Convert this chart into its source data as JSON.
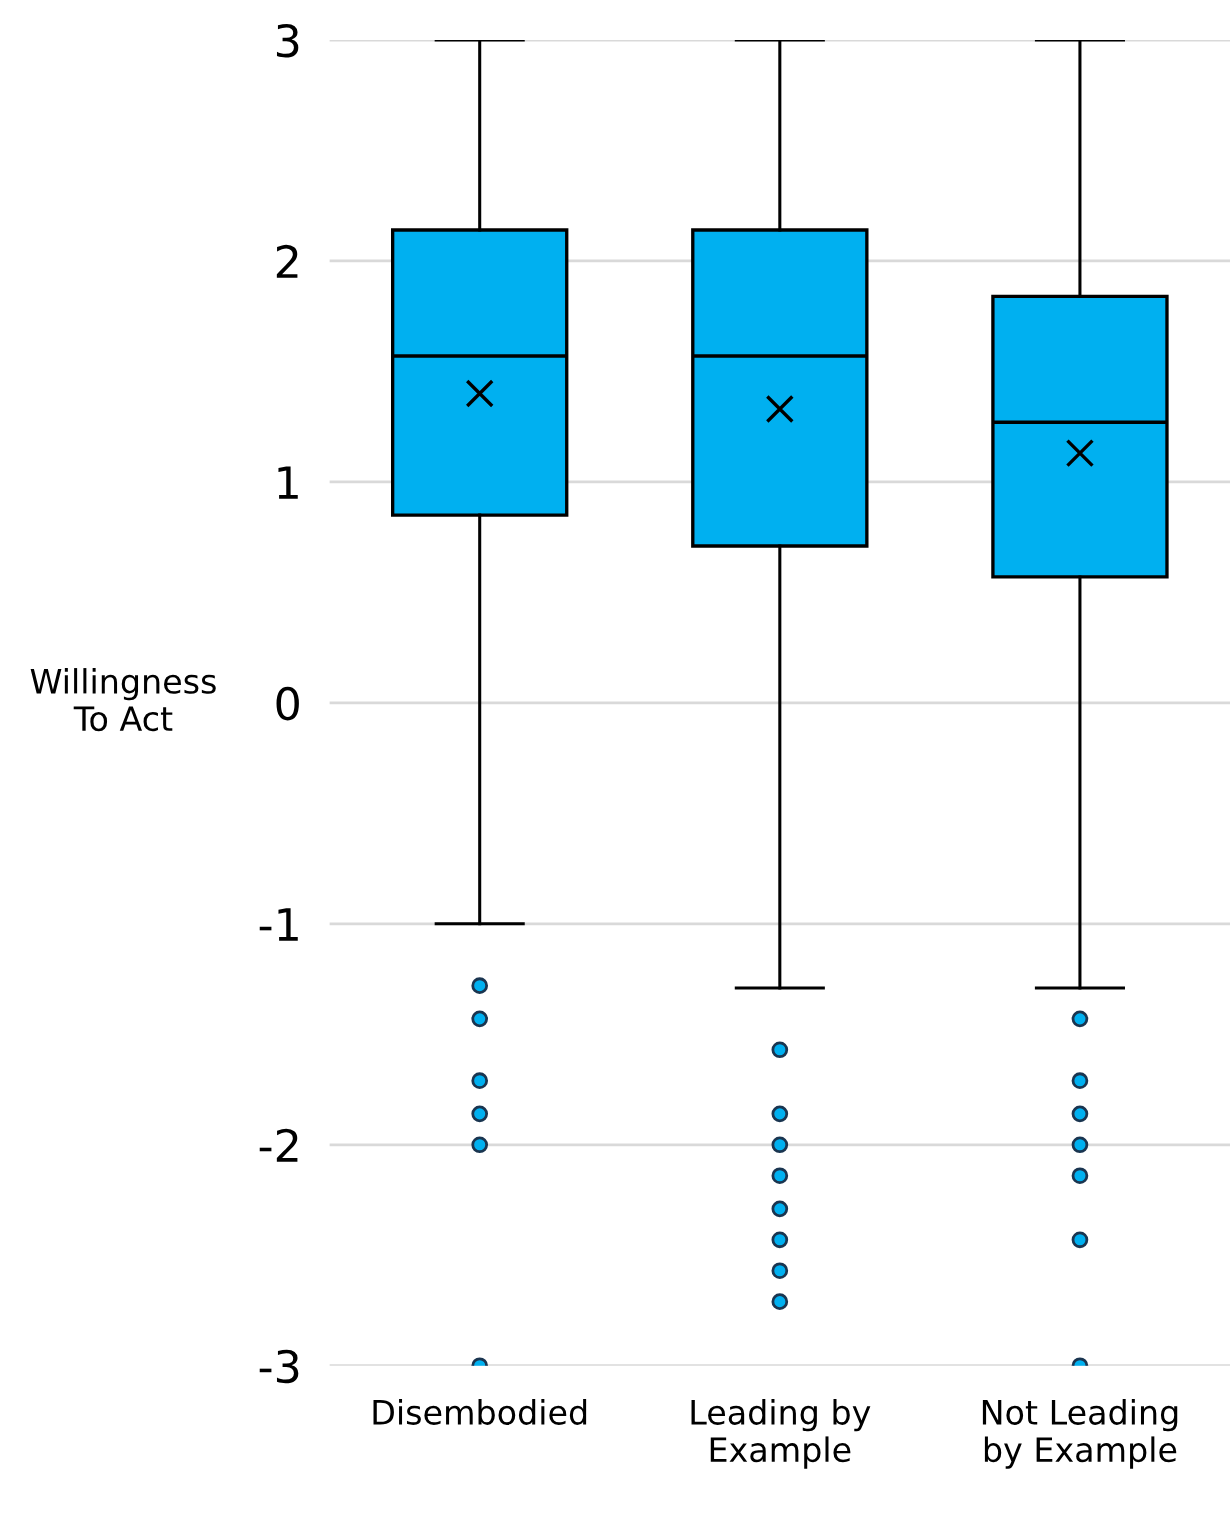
{
  "chart_data": {
    "type": "box",
    "ylabel": "Willingness\nTo Act",
    "categories": [
      "Disembodied",
      "Leading by\nExample",
      "Not Leading\nby Example"
    ],
    "color": "#00b0f0",
    "boxes": [
      {
        "low": -1.0,
        "q1": 0.85,
        "median": 1.57,
        "q3": 2.14,
        "high": 3,
        "mean": 1.4,
        "outliers": [
          -1.28,
          -1.43,
          -1.71,
          -1.86,
          -2.0,
          -3.0
        ]
      },
      {
        "low": -1.29,
        "q1": 0.71,
        "median": 1.57,
        "q3": 2.14,
        "high": 3,
        "mean": 1.33,
        "outliers": [
          -1.57,
          -1.86,
          -2.0,
          -2.14,
          -2.29,
          -2.43,
          -2.57,
          -2.71
        ]
      },
      {
        "low": -1.29,
        "q1": 0.57,
        "median": 1.27,
        "q3": 1.84,
        "high": 3,
        "mean": 1.13,
        "outliers": [
          -1.43,
          -1.71,
          -1.86,
          -2.0,
          -2.14,
          -2.43,
          -3.0
        ]
      }
    ],
    "ylim": [
      -3,
      3
    ],
    "yticks": [
      -3,
      -2,
      -1,
      0,
      1,
      2,
      3
    ],
    "grid": "y"
  }
}
